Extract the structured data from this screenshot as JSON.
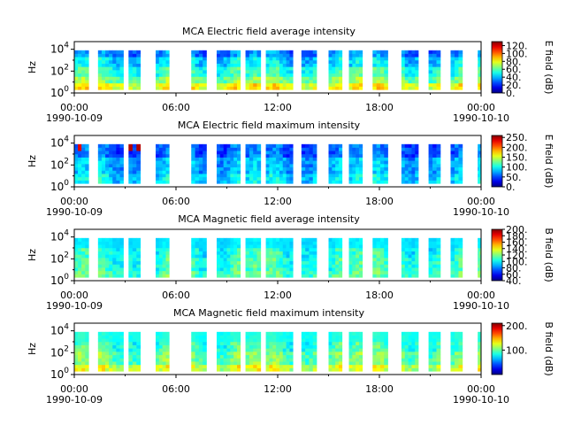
{
  "chart_data": [
    {
      "type": "heatmap",
      "title": "MCA  Electric field average intensity",
      "ylabel": "Hz",
      "yscale": "log",
      "ylim": [
        1,
        50000
      ],
      "yticks": [
        {
          "v": 1,
          "b": "10",
          "e": "0"
        },
        {
          "v": 100,
          "b": "10",
          "e": "2"
        },
        {
          "v": 10000,
          "b": "10",
          "e": "4"
        }
      ],
      "xlim": [
        "1990-10-09 00:00",
        "1990-10-10 00:00"
      ],
      "xticks": [
        {
          "label": "00:00",
          "sub": "1990-10-09",
          "h": 0
        },
        {
          "label": "06:00",
          "sub": "",
          "h": 6
        },
        {
          "label": "12:00",
          "sub": "",
          "h": 12
        },
        {
          "label": "18:00",
          "sub": "",
          "h": 18
        },
        {
          "label": "00:00",
          "sub": "1990-10-10",
          "h": 24
        }
      ],
      "colorbar": {
        "label": "E field (dB)",
        "range": [
          0,
          130
        ],
        "ticks": [
          "0.",
          "20.",
          "40.",
          "60.",
          "80.",
          "100.",
          "120."
        ],
        "tick_values": [
          0,
          20,
          40,
          60,
          80,
          100,
          120
        ],
        "colormap": "jet"
      },
      "style": "e_avg"
    },
    {
      "type": "heatmap",
      "title": "MCA  Electric field maximum intensity",
      "ylabel": "Hz",
      "yscale": "log",
      "ylim": [
        1,
        50000
      ],
      "yticks": [
        {
          "v": 1,
          "b": "10",
          "e": "0"
        },
        {
          "v": 100,
          "b": "10",
          "e": "2"
        },
        {
          "v": 10000,
          "b": "10",
          "e": "4"
        }
      ],
      "xlim": [
        "1990-10-09 00:00",
        "1990-10-10 00:00"
      ],
      "xticks": [
        {
          "label": "00:00",
          "sub": "1990-10-09",
          "h": 0
        },
        {
          "label": "06:00",
          "sub": "",
          "h": 6
        },
        {
          "label": "12:00",
          "sub": "",
          "h": 12
        },
        {
          "label": "18:00",
          "sub": "",
          "h": 18
        },
        {
          "label": "00:00",
          "sub": "1990-10-10",
          "h": 24
        }
      ],
      "colorbar": {
        "label": "E field (dB)",
        "range": [
          0,
          260
        ],
        "ticks": [
          "0.",
          "50.",
          "100.",
          "150.",
          "200.",
          "250."
        ],
        "tick_values": [
          0,
          50,
          100,
          150,
          200,
          250
        ],
        "colormap": "jet"
      },
      "style": "e_max"
    },
    {
      "type": "heatmap",
      "title": "MCA  Magnetic field average intensity",
      "ylabel": "Hz",
      "yscale": "log",
      "ylim": [
        1,
        50000
      ],
      "yticks": [
        {
          "v": 1,
          "b": "10",
          "e": "0"
        },
        {
          "v": 100,
          "b": "10",
          "e": "2"
        },
        {
          "v": 10000,
          "b": "10",
          "e": "4"
        }
      ],
      "xlim": [
        "1990-10-09 00:00",
        "1990-10-10 00:00"
      ],
      "xticks": [
        {
          "label": "00:00",
          "sub": "1990-10-09",
          "h": 0
        },
        {
          "label": "06:00",
          "sub": "",
          "h": 6
        },
        {
          "label": "12:00",
          "sub": "",
          "h": 12
        },
        {
          "label": "18:00",
          "sub": "",
          "h": 18
        },
        {
          "label": "00:00",
          "sub": "1990-10-10",
          "h": 24
        }
      ],
      "colorbar": {
        "label": "B field (dB)",
        "range": [
          40,
          200
        ],
        "ticks": [
          "40.",
          "60.",
          "80.",
          "100.",
          "120.",
          "140.",
          "160.",
          "180.",
          "200."
        ],
        "tick_values": [
          40,
          60,
          80,
          100,
          120,
          140,
          160,
          180,
          200
        ],
        "colormap": "jet"
      },
      "style": "b_avg"
    },
    {
      "type": "heatmap",
      "title": "MCA  Magnetic field maximum intensity",
      "ylabel": "Hz",
      "yscale": "log",
      "ylim": [
        1,
        50000
      ],
      "yticks": [
        {
          "v": 1,
          "b": "10",
          "e": "0"
        },
        {
          "v": 100,
          "b": "10",
          "e": "2"
        },
        {
          "v": 10000,
          "b": "10",
          "e": "4"
        }
      ],
      "xlim": [
        "1990-10-09 00:00",
        "1990-10-10 00:00"
      ],
      "xticks": [
        {
          "label": "00:00",
          "sub": "1990-10-09",
          "h": 0
        },
        {
          "label": "06:00",
          "sub": "",
          "h": 6
        },
        {
          "label": "12:00",
          "sub": "",
          "h": 12
        },
        {
          "label": "18:00",
          "sub": "",
          "h": 18
        },
        {
          "label": "00:00",
          "sub": "1990-10-10",
          "h": 24
        }
      ],
      "colorbar": {
        "label": "B field (dB)",
        "range": [
          0,
          210
        ],
        "ticks": [
          "100.",
          "200."
        ],
        "tick_values": [
          100,
          200
        ],
        "colormap": "jet"
      },
      "style": "b_max"
    }
  ]
}
